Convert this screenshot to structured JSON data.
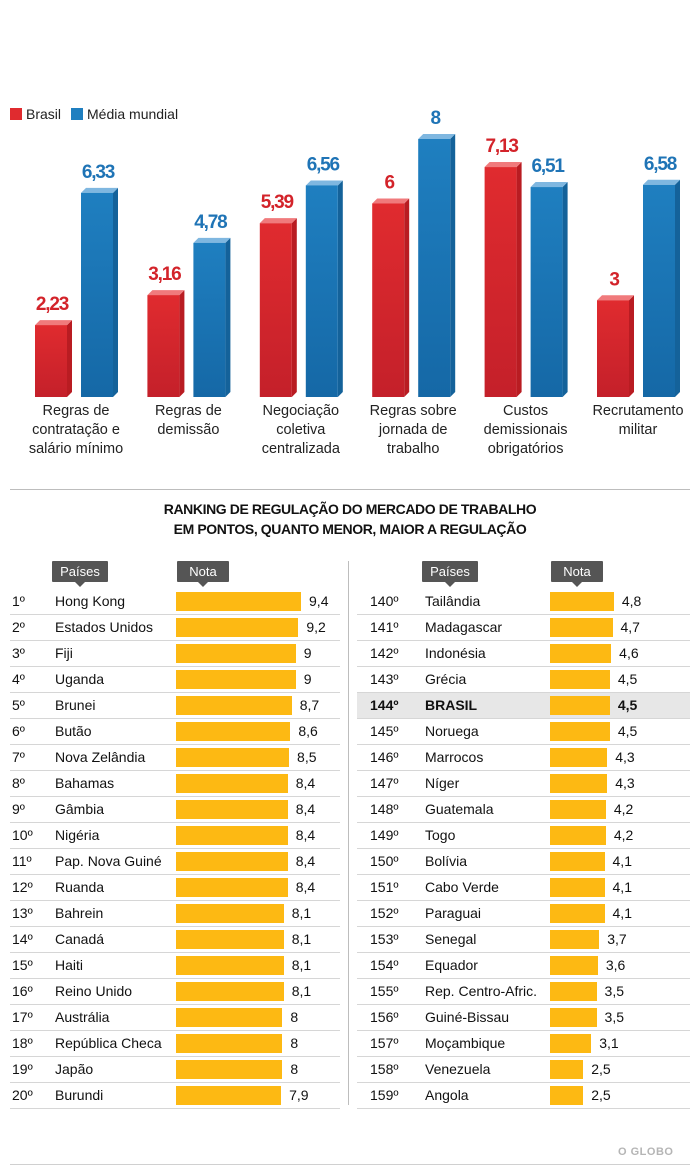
{
  "chart_data": [
    {
      "type": "bar",
      "categories": [
        "Regras de\ncontratação e\nsalário mínimo",
        "Regras de\ndemissão",
        "Negociação\ncoletiva\ncentralizada",
        "Regras sobre\njornada de\ntrabalho",
        "Custos\ndemissionais\nobrigatórios",
        "Recrutamento\nmilitar"
      ],
      "series": [
        {
          "name": "Brasil",
          "values": [
            2.23,
            3.16,
            5.39,
            6,
            7.13,
            3
          ],
          "labels": [
            "2,23",
            "3,16",
            "5,39",
            "6",
            "7,13",
            "3"
          ]
        },
        {
          "name": "Média mundial",
          "values": [
            6.33,
            4.78,
            6.56,
            8,
            6.51,
            6.58
          ],
          "labels": [
            "6,33",
            "4,78",
            "6,56",
            "8",
            "6,51",
            "6,58"
          ]
        }
      ],
      "colors": {
        "Brasil": "#e02b2f",
        "Média mundial": "#1f7fc0"
      },
      "ylim": [
        0,
        8
      ],
      "legend": "top-left",
      "grid": false
    },
    {
      "type": "table",
      "title": "RANKING DE REGULAÇÃO DO MERCADO DE TRABALHO\nEM PONTOS, QUANTO MENOR, MAIOR A REGULAÇÃO",
      "columns": [
        "Países",
        "Nota"
      ],
      "bar_color": "#fdb913",
      "bar_max": 10,
      "left": [
        {
          "rank": "1º",
          "country": "Hong Kong",
          "score": 9.4,
          "label": "9,4"
        },
        {
          "rank": "2º",
          "country": "Estados Unidos",
          "score": 9.2,
          "label": "9,2"
        },
        {
          "rank": "3º",
          "country": "Fiji",
          "score": 9,
          "label": "9"
        },
        {
          "rank": "4º",
          "country": "Uganda",
          "score": 9,
          "label": "9"
        },
        {
          "rank": "5º",
          "country": "Brunei",
          "score": 8.7,
          "label": "8,7"
        },
        {
          "rank": "6º",
          "country": "Butão",
          "score": 8.6,
          "label": "8,6"
        },
        {
          "rank": "7º",
          "country": "Nova Zelândia",
          "score": 8.5,
          "label": "8,5"
        },
        {
          "rank": "8º",
          "country": "Bahamas",
          "score": 8.4,
          "label": "8,4"
        },
        {
          "rank": "9º",
          "country": "Gâmbia",
          "score": 8.4,
          "label": "8,4"
        },
        {
          "rank": "10º",
          "country": "Nigéria",
          "score": 8.4,
          "label": "8,4"
        },
        {
          "rank": "11º",
          "country": "Pap. Nova Guiné",
          "score": 8.4,
          "label": "8,4"
        },
        {
          "rank": "12º",
          "country": "Ruanda",
          "score": 8.4,
          "label": "8,4"
        },
        {
          "rank": "13º",
          "country": "Bahrein",
          "score": 8.1,
          "label": "8,1"
        },
        {
          "rank": "14º",
          "country": "Canadá",
          "score": 8.1,
          "label": "8,1"
        },
        {
          "rank": "15º",
          "country": "Haiti",
          "score": 8.1,
          "label": "8,1"
        },
        {
          "rank": "16º",
          "country": "Reino Unido",
          "score": 8.1,
          "label": "8,1"
        },
        {
          "rank": "17º",
          "country": "Austrália",
          "score": 8,
          "label": "8"
        },
        {
          "rank": "18º",
          "country": "República Checa",
          "score": 8,
          "label": "8"
        },
        {
          "rank": "19º",
          "country": "Japão",
          "score": 8,
          "label": "8"
        },
        {
          "rank": "20º",
          "country": "Burundi",
          "score": 7.9,
          "label": "7,9"
        }
      ],
      "right": [
        {
          "rank": "140º",
          "country": "Tailândia",
          "score": 4.8,
          "label": "4,8"
        },
        {
          "rank": "141º",
          "country": "Madagascar",
          "score": 4.7,
          "label": "4,7"
        },
        {
          "rank": "142º",
          "country": "Indonésia",
          "score": 4.6,
          "label": "4,6"
        },
        {
          "rank": "143º",
          "country": "Grécia",
          "score": 4.5,
          "label": "4,5"
        },
        {
          "rank": "144º",
          "country": "BRASIL",
          "score": 4.5,
          "label": "4,5",
          "highlight": true
        },
        {
          "rank": "145º",
          "country": "Noruega",
          "score": 4.5,
          "label": "4,5"
        },
        {
          "rank": "146º",
          "country": "Marrocos",
          "score": 4.3,
          "label": "4,3"
        },
        {
          "rank": "147º",
          "country": "Níger",
          "score": 4.3,
          "label": "4,3"
        },
        {
          "rank": "148º",
          "country": "Guatemala",
          "score": 4.2,
          "label": "4,2"
        },
        {
          "rank": "149º",
          "country": "Togo",
          "score": 4.2,
          "label": "4,2"
        },
        {
          "rank": "150º",
          "country": "Bolívia",
          "score": 4.1,
          "label": "4,1"
        },
        {
          "rank": "151º",
          "country": "Cabo Verde",
          "score": 4.1,
          "label": "4,1"
        },
        {
          "rank": "152º",
          "country": "Paraguai",
          "score": 4.1,
          "label": "4,1"
        },
        {
          "rank": "153º",
          "country": "Senegal",
          "score": 3.7,
          "label": "3,7"
        },
        {
          "rank": "154º",
          "country": "Equador",
          "score": 3.6,
          "label": "3,6"
        },
        {
          "rank": "155º",
          "country": "Rep. Centro-Afric.",
          "score": 3.5,
          "label": "3,5"
        },
        {
          "rank": "156º",
          "country": "Guiné-Bissau",
          "score": 3.5,
          "label": "3,5"
        },
        {
          "rank": "157º",
          "country": "Moçambique",
          "score": 3.1,
          "label": "3,1"
        },
        {
          "rank": "158º",
          "country": "Venezuela",
          "score": 2.5,
          "label": "2,5"
        },
        {
          "rank": "159º",
          "country": "Angola",
          "score": 2.5,
          "label": "2,5"
        }
      ]
    }
  ],
  "footer": {
    "brand": "O GLOBO"
  }
}
